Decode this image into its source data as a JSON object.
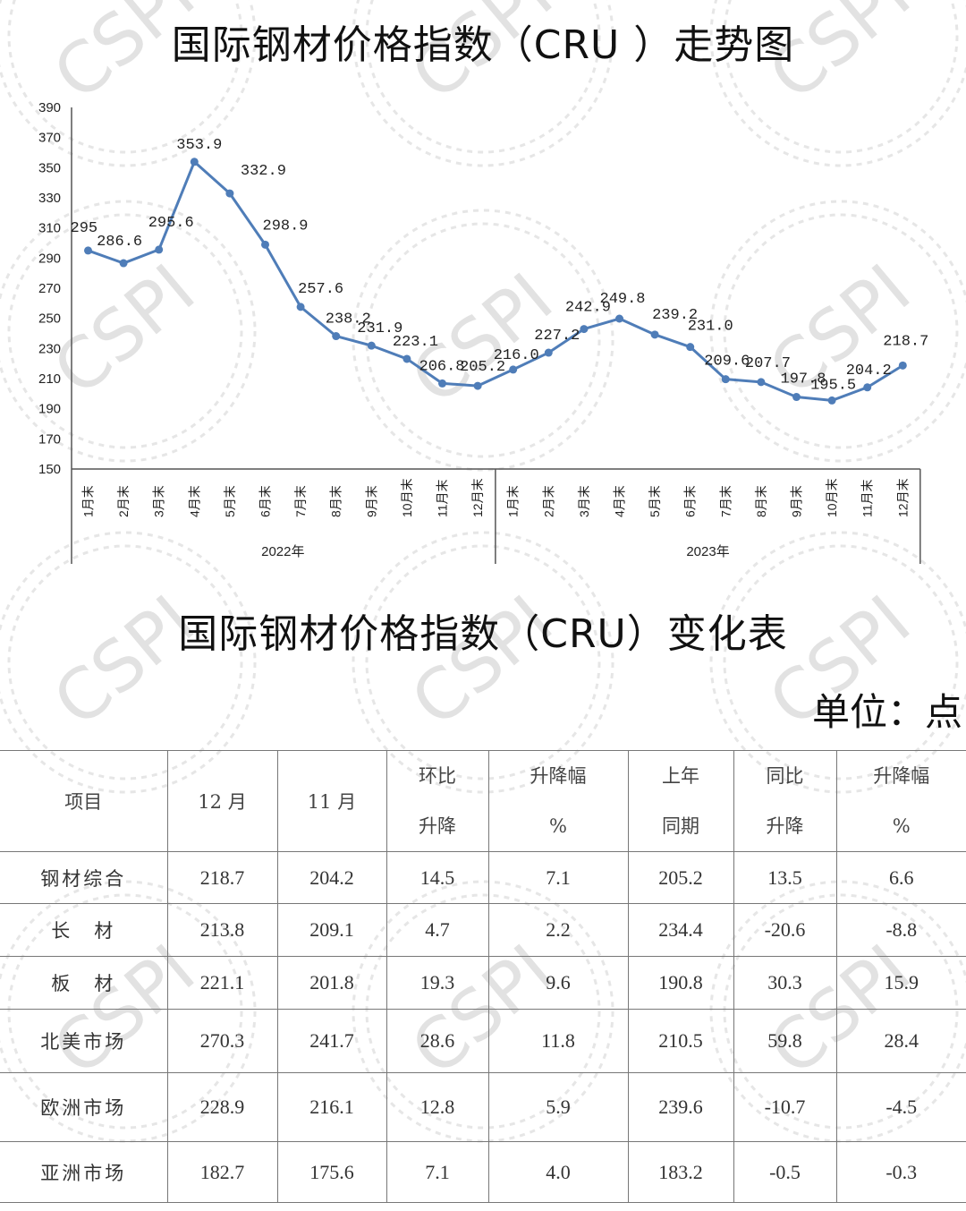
{
  "chart": {
    "title": "国际钢材价格指数（CRU ）走势图",
    "colors": {
      "line": "#4f7db8",
      "axis": "#555555",
      "text": "#222222"
    }
  },
  "chart_data": {
    "type": "line",
    "title": "国际钢材价格指数（CRU ）走势图",
    "xlabel": "",
    "ylabel": "",
    "ylim": [
      150,
      390
    ],
    "yticks": [
      150,
      170,
      190,
      210,
      230,
      250,
      270,
      290,
      310,
      330,
      350,
      370,
      390
    ],
    "grid": false,
    "legend": null,
    "x_groups": [
      {
        "label": "2022年",
        "categories": [
          "1月末",
          "2月末",
          "3月末",
          "4月末",
          "5月末",
          "6月末",
          "7月末",
          "8月末",
          "9月末",
          "10月末",
          "11月末",
          "12月末"
        ]
      },
      {
        "label": "2023年",
        "categories": [
          "1月末",
          "2月末",
          "3月末",
          "4月末",
          "5月末",
          "6月末",
          "7月末",
          "8月末",
          "9月末",
          "10月末",
          "11月末",
          "12月末"
        ]
      }
    ],
    "categories": [
      "2022年1月末",
      "2022年2月末",
      "2022年3月末",
      "2022年4月末",
      "2022年5月末",
      "2022年6月末",
      "2022年7月末",
      "2022年8月末",
      "2022年9月末",
      "2022年10月末",
      "2022年11月末",
      "2022年12月末",
      "2023年1月末",
      "2023年2月末",
      "2023年3月末",
      "2023年4月末",
      "2023年5月末",
      "2023年6月末",
      "2023年7月末",
      "2023年8月末",
      "2023年9月末",
      "2023年10月末",
      "2023年11月末",
      "2023年12月末"
    ],
    "series": [
      {
        "name": "CRU",
        "values": [
          295,
          286.6,
          295.6,
          353.9,
          332.9,
          298.9,
          257.6,
          238.2,
          231.9,
          223.1,
          206.8,
          205.2,
          216.0,
          227.2,
          242.9,
          249.8,
          239.2,
          231.0,
          209.6,
          207.7,
          197.8,
          195.5,
          204.2,
          218.7
        ],
        "labels": [
          "295",
          "286.6",
          "295.6",
          "353.9",
          "332.9",
          "298.9",
          "257.6",
          "238.2",
          "231.9",
          "223.1",
          "206.8",
          "205.2",
          "216.0",
          "227.2",
          "242.9",
          "249.8",
          "239.2",
          "231.0",
          "209.6",
          "207.7",
          "197.8",
          "195.5",
          "204.2",
          "218.7"
        ]
      }
    ]
  },
  "table": {
    "title": "国际钢材价格指数（CRU）变化表",
    "unit": "单位：点",
    "headers": [
      {
        "line1": "项目",
        "line2": ""
      },
      {
        "line1": "12 月",
        "line2": ""
      },
      {
        "line1": "11 月",
        "line2": ""
      },
      {
        "line1": "环比",
        "line2": "升降"
      },
      {
        "line1": "升降幅",
        "line2": "%"
      },
      {
        "line1": "上年",
        "line2": "同期"
      },
      {
        "line1": "同比",
        "line2": "升降"
      },
      {
        "line1": "升降幅",
        "line2": "%"
      }
    ],
    "rows": [
      [
        "钢材综合",
        "218.7",
        "204.2",
        "14.5",
        "7.1",
        "205.2",
        "13.5",
        "6.6"
      ],
      [
        "长　材",
        "213.8",
        "209.1",
        "4.7",
        "2.2",
        "234.4",
        "-20.6",
        "-8.8"
      ],
      [
        "板　材",
        "221.1",
        "201.8",
        "19.3",
        "9.6",
        "190.8",
        "30.3",
        "15.9"
      ],
      [
        "北美市场",
        "270.3",
        "241.7",
        "28.6",
        "11.8",
        "210.5",
        "59.8",
        "28.4"
      ],
      [
        "欧洲市场",
        "228.9",
        "216.1",
        "12.8",
        "5.9",
        "239.6",
        "-10.7",
        "-4.5"
      ],
      [
        "亚洲市场",
        "182.7",
        "175.6",
        "7.1",
        "4.0",
        "183.2",
        "-0.5",
        "-0.3"
      ]
    ]
  },
  "watermark": {
    "text": "CSPI",
    "color": "#e2e2e2"
  }
}
